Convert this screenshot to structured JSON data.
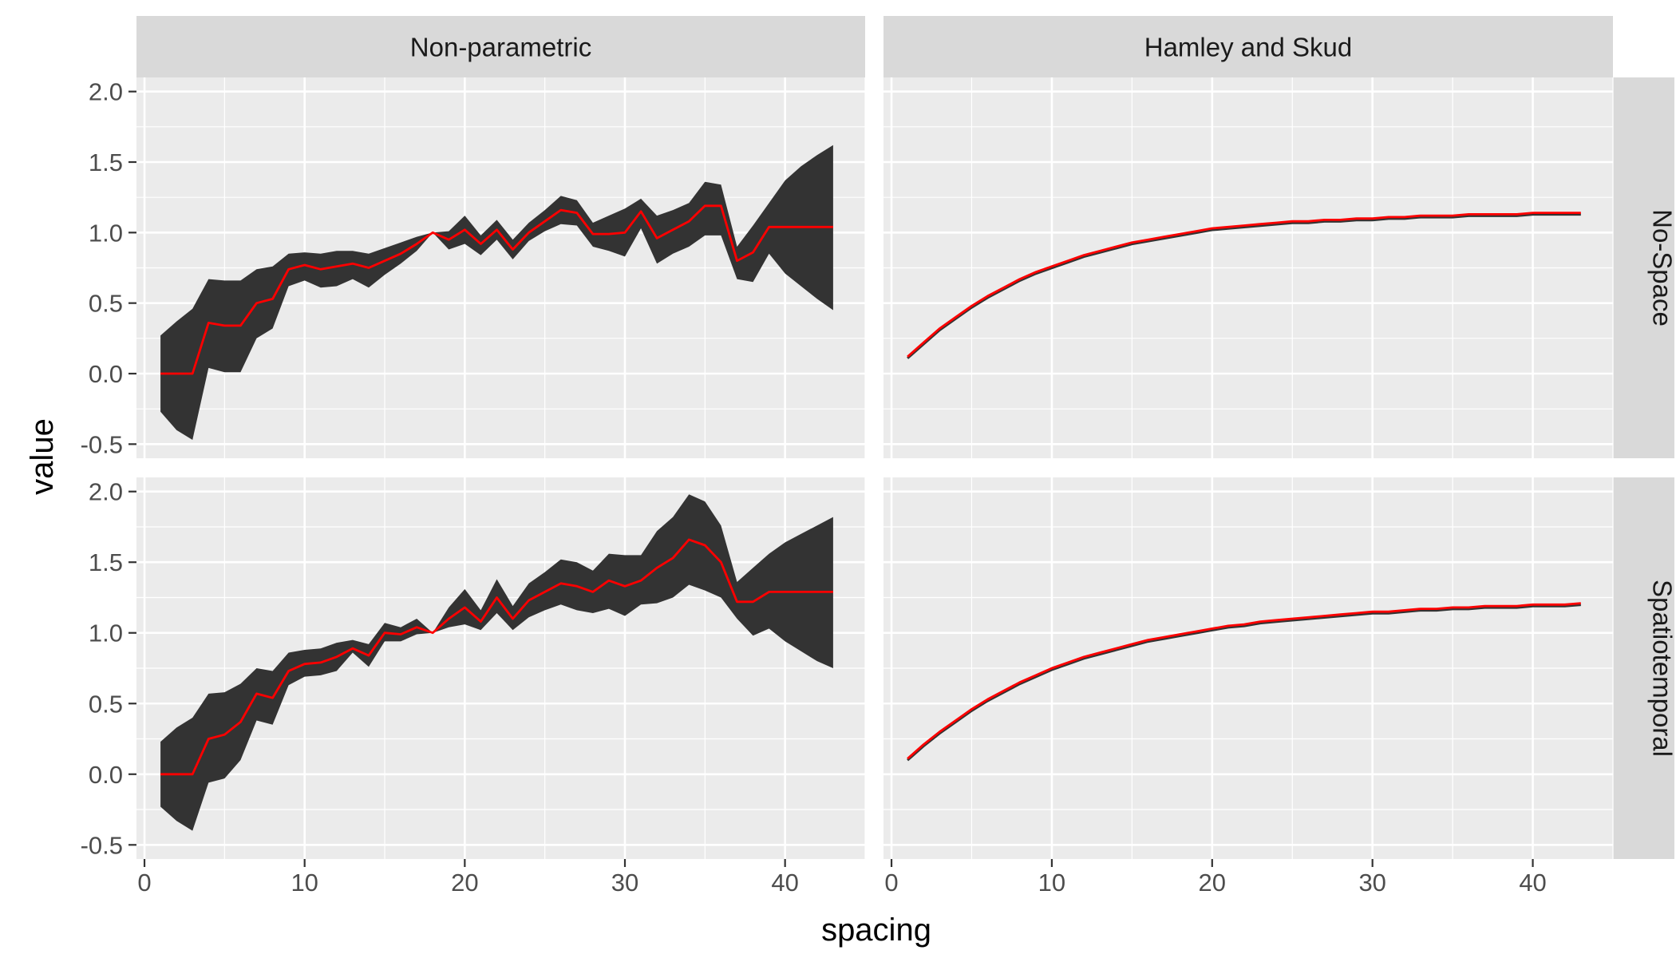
{
  "chart_data": {
    "type": "line",
    "xlabel": "spacing",
    "ylabel": "value",
    "xlim": [
      -0.5,
      45
    ],
    "ylim": [
      -0.6,
      2.1
    ],
    "x_ticks": [
      0,
      10,
      20,
      30,
      40
    ],
    "x_tick_labels": [
      "0",
      "10",
      "20",
      "30",
      "40"
    ],
    "y_ticks": [
      -0.5,
      0.0,
      0.5,
      1.0,
      1.5,
      2.0
    ],
    "y_tick_labels": [
      "-0.5",
      "0.0",
      "0.5",
      "1.0",
      "1.5",
      "2.0"
    ],
    "grid": true,
    "background": "#ebebeb",
    "strip_fill": "#d9d9d9",
    "line_color": "#ff0000",
    "ribbon_color": "#333333",
    "columns": [
      "Non-parametric",
      "Hamley and Skud"
    ],
    "rows": [
      "No-Space",
      "Spatiotemporal"
    ],
    "panels": [
      {
        "col": "Non-parametric",
        "row": "No-Space",
        "kind": "ribbon",
        "x": [
          1,
          2,
          3,
          4,
          5,
          6,
          7,
          8,
          9,
          10,
          11,
          12,
          13,
          14,
          15,
          16,
          17,
          18,
          19,
          20,
          21,
          22,
          23,
          24,
          25,
          26,
          27,
          28,
          29,
          30,
          31,
          32,
          33,
          34,
          35,
          36,
          37,
          38,
          39,
          40,
          41,
          42,
          43
        ],
        "y": [
          0,
          0,
          0,
          0.36,
          0.34,
          0.34,
          0.5,
          0.53,
          0.74,
          0.77,
          0.74,
          0.76,
          0.78,
          0.75,
          0.8,
          0.85,
          0.92,
          1.0,
          0.95,
          1.02,
          0.92,
          1.02,
          0.88,
          1.0,
          1.08,
          1.16,
          1.14,
          0.99,
          0.99,
          1.0,
          1.15,
          0.96,
          1.02,
          1.08,
          1.19,
          1.19,
          0.8,
          0.86,
          1.04,
          1.04,
          1.04,
          1.04,
          1.04
        ],
        "lower": [
          -0.27,
          -0.4,
          -0.47,
          0.04,
          0.01,
          0.01,
          0.25,
          0.32,
          0.62,
          0.66,
          0.61,
          0.62,
          0.67,
          0.61,
          0.7,
          0.78,
          0.87,
          1.0,
          0.88,
          0.92,
          0.84,
          0.95,
          0.81,
          0.94,
          1.01,
          1.06,
          1.05,
          0.9,
          0.87,
          0.83,
          1.03,
          0.78,
          0.85,
          0.9,
          0.98,
          0.98,
          0.67,
          0.65,
          0.85,
          0.71,
          0.62,
          0.53,
          0.45
        ],
        "upper": [
          0.27,
          0.37,
          0.46,
          0.67,
          0.66,
          0.66,
          0.74,
          0.76,
          0.85,
          0.86,
          0.85,
          0.87,
          0.87,
          0.85,
          0.89,
          0.93,
          0.97,
          1.0,
          1.01,
          1.12,
          0.98,
          1.09,
          0.95,
          1.07,
          1.16,
          1.26,
          1.23,
          1.07,
          1.12,
          1.17,
          1.24,
          1.12,
          1.16,
          1.21,
          1.36,
          1.34,
          0.9,
          1.05,
          1.21,
          1.37,
          1.47,
          1.55,
          1.62
        ]
      },
      {
        "col": "Hamley and Skud",
        "row": "No-Space",
        "kind": "curve",
        "x": [
          1,
          2,
          3,
          4,
          5,
          6,
          7,
          8,
          9,
          10,
          11,
          12,
          13,
          14,
          15,
          16,
          17,
          18,
          19,
          20,
          21,
          22,
          23,
          24,
          25,
          26,
          27,
          28,
          29,
          30,
          31,
          32,
          33,
          34,
          35,
          36,
          37,
          38,
          39,
          40,
          41,
          42,
          43
        ],
        "y": [
          0.12,
          0.22,
          0.32,
          0.4,
          0.48,
          0.55,
          0.61,
          0.67,
          0.72,
          0.76,
          0.8,
          0.84,
          0.87,
          0.9,
          0.93,
          0.95,
          0.97,
          0.99,
          1.01,
          1.03,
          1.04,
          1.05,
          1.06,
          1.07,
          1.08,
          1.08,
          1.09,
          1.09,
          1.1,
          1.1,
          1.11,
          1.11,
          1.12,
          1.12,
          1.12,
          1.13,
          1.13,
          1.13,
          1.13,
          1.14,
          1.14,
          1.14,
          1.14
        ]
      },
      {
        "col": "Non-parametric",
        "row": "Spatiotemporal",
        "kind": "ribbon",
        "x": [
          1,
          2,
          3,
          4,
          5,
          6,
          7,
          8,
          9,
          10,
          11,
          12,
          13,
          14,
          15,
          16,
          17,
          18,
          19,
          20,
          21,
          22,
          23,
          24,
          25,
          26,
          27,
          28,
          29,
          30,
          31,
          32,
          33,
          34,
          35,
          36,
          37,
          38,
          39,
          40,
          41,
          42,
          43
        ],
        "y": [
          0,
          0,
          0,
          0.25,
          0.28,
          0.37,
          0.57,
          0.54,
          0.73,
          0.78,
          0.79,
          0.83,
          0.89,
          0.84,
          1.0,
          0.99,
          1.04,
          1.0,
          1.1,
          1.18,
          1.08,
          1.25,
          1.1,
          1.23,
          1.29,
          1.35,
          1.33,
          1.29,
          1.37,
          1.33,
          1.37,
          1.46,
          1.53,
          1.66,
          1.62,
          1.5,
          1.22,
          1.22,
          1.29,
          1.29,
          1.29,
          1.29,
          1.29
        ],
        "lower": [
          -0.23,
          -0.33,
          -0.4,
          -0.06,
          -0.03,
          0.1,
          0.38,
          0.35,
          0.63,
          0.69,
          0.7,
          0.73,
          0.86,
          0.76,
          0.94,
          0.94,
          0.99,
          1.0,
          1.04,
          1.06,
          1.02,
          1.14,
          1.02,
          1.11,
          1.16,
          1.2,
          1.16,
          1.14,
          1.17,
          1.12,
          1.2,
          1.21,
          1.25,
          1.34,
          1.3,
          1.25,
          1.1,
          0.98,
          1.03,
          0.94,
          0.87,
          0.8,
          0.75
        ],
        "upper": [
          0.23,
          0.33,
          0.4,
          0.57,
          0.58,
          0.64,
          0.75,
          0.73,
          0.86,
          0.88,
          0.89,
          0.93,
          0.95,
          0.92,
          1.07,
          1.04,
          1.1,
          1.0,
          1.18,
          1.31,
          1.16,
          1.38,
          1.19,
          1.35,
          1.43,
          1.52,
          1.5,
          1.44,
          1.56,
          1.55,
          1.55,
          1.72,
          1.82,
          1.98,
          1.93,
          1.76,
          1.36,
          1.46,
          1.56,
          1.64,
          1.7,
          1.76,
          1.82
        ]
      },
      {
        "col": "Hamley and Skud",
        "row": "Spatiotemporal",
        "kind": "curve",
        "x": [
          1,
          2,
          3,
          4,
          5,
          6,
          7,
          8,
          9,
          10,
          11,
          12,
          13,
          14,
          15,
          16,
          17,
          18,
          19,
          20,
          21,
          22,
          23,
          24,
          25,
          26,
          27,
          28,
          29,
          30,
          31,
          32,
          33,
          34,
          35,
          36,
          37,
          38,
          39,
          40,
          41,
          42,
          43
        ],
        "y": [
          0.11,
          0.21,
          0.3,
          0.38,
          0.46,
          0.53,
          0.59,
          0.65,
          0.7,
          0.75,
          0.79,
          0.83,
          0.86,
          0.89,
          0.92,
          0.95,
          0.97,
          0.99,
          1.01,
          1.03,
          1.05,
          1.06,
          1.08,
          1.09,
          1.1,
          1.11,
          1.12,
          1.13,
          1.14,
          1.15,
          1.15,
          1.16,
          1.17,
          1.17,
          1.18,
          1.18,
          1.19,
          1.19,
          1.19,
          1.2,
          1.2,
          1.2,
          1.21
        ]
      }
    ]
  }
}
